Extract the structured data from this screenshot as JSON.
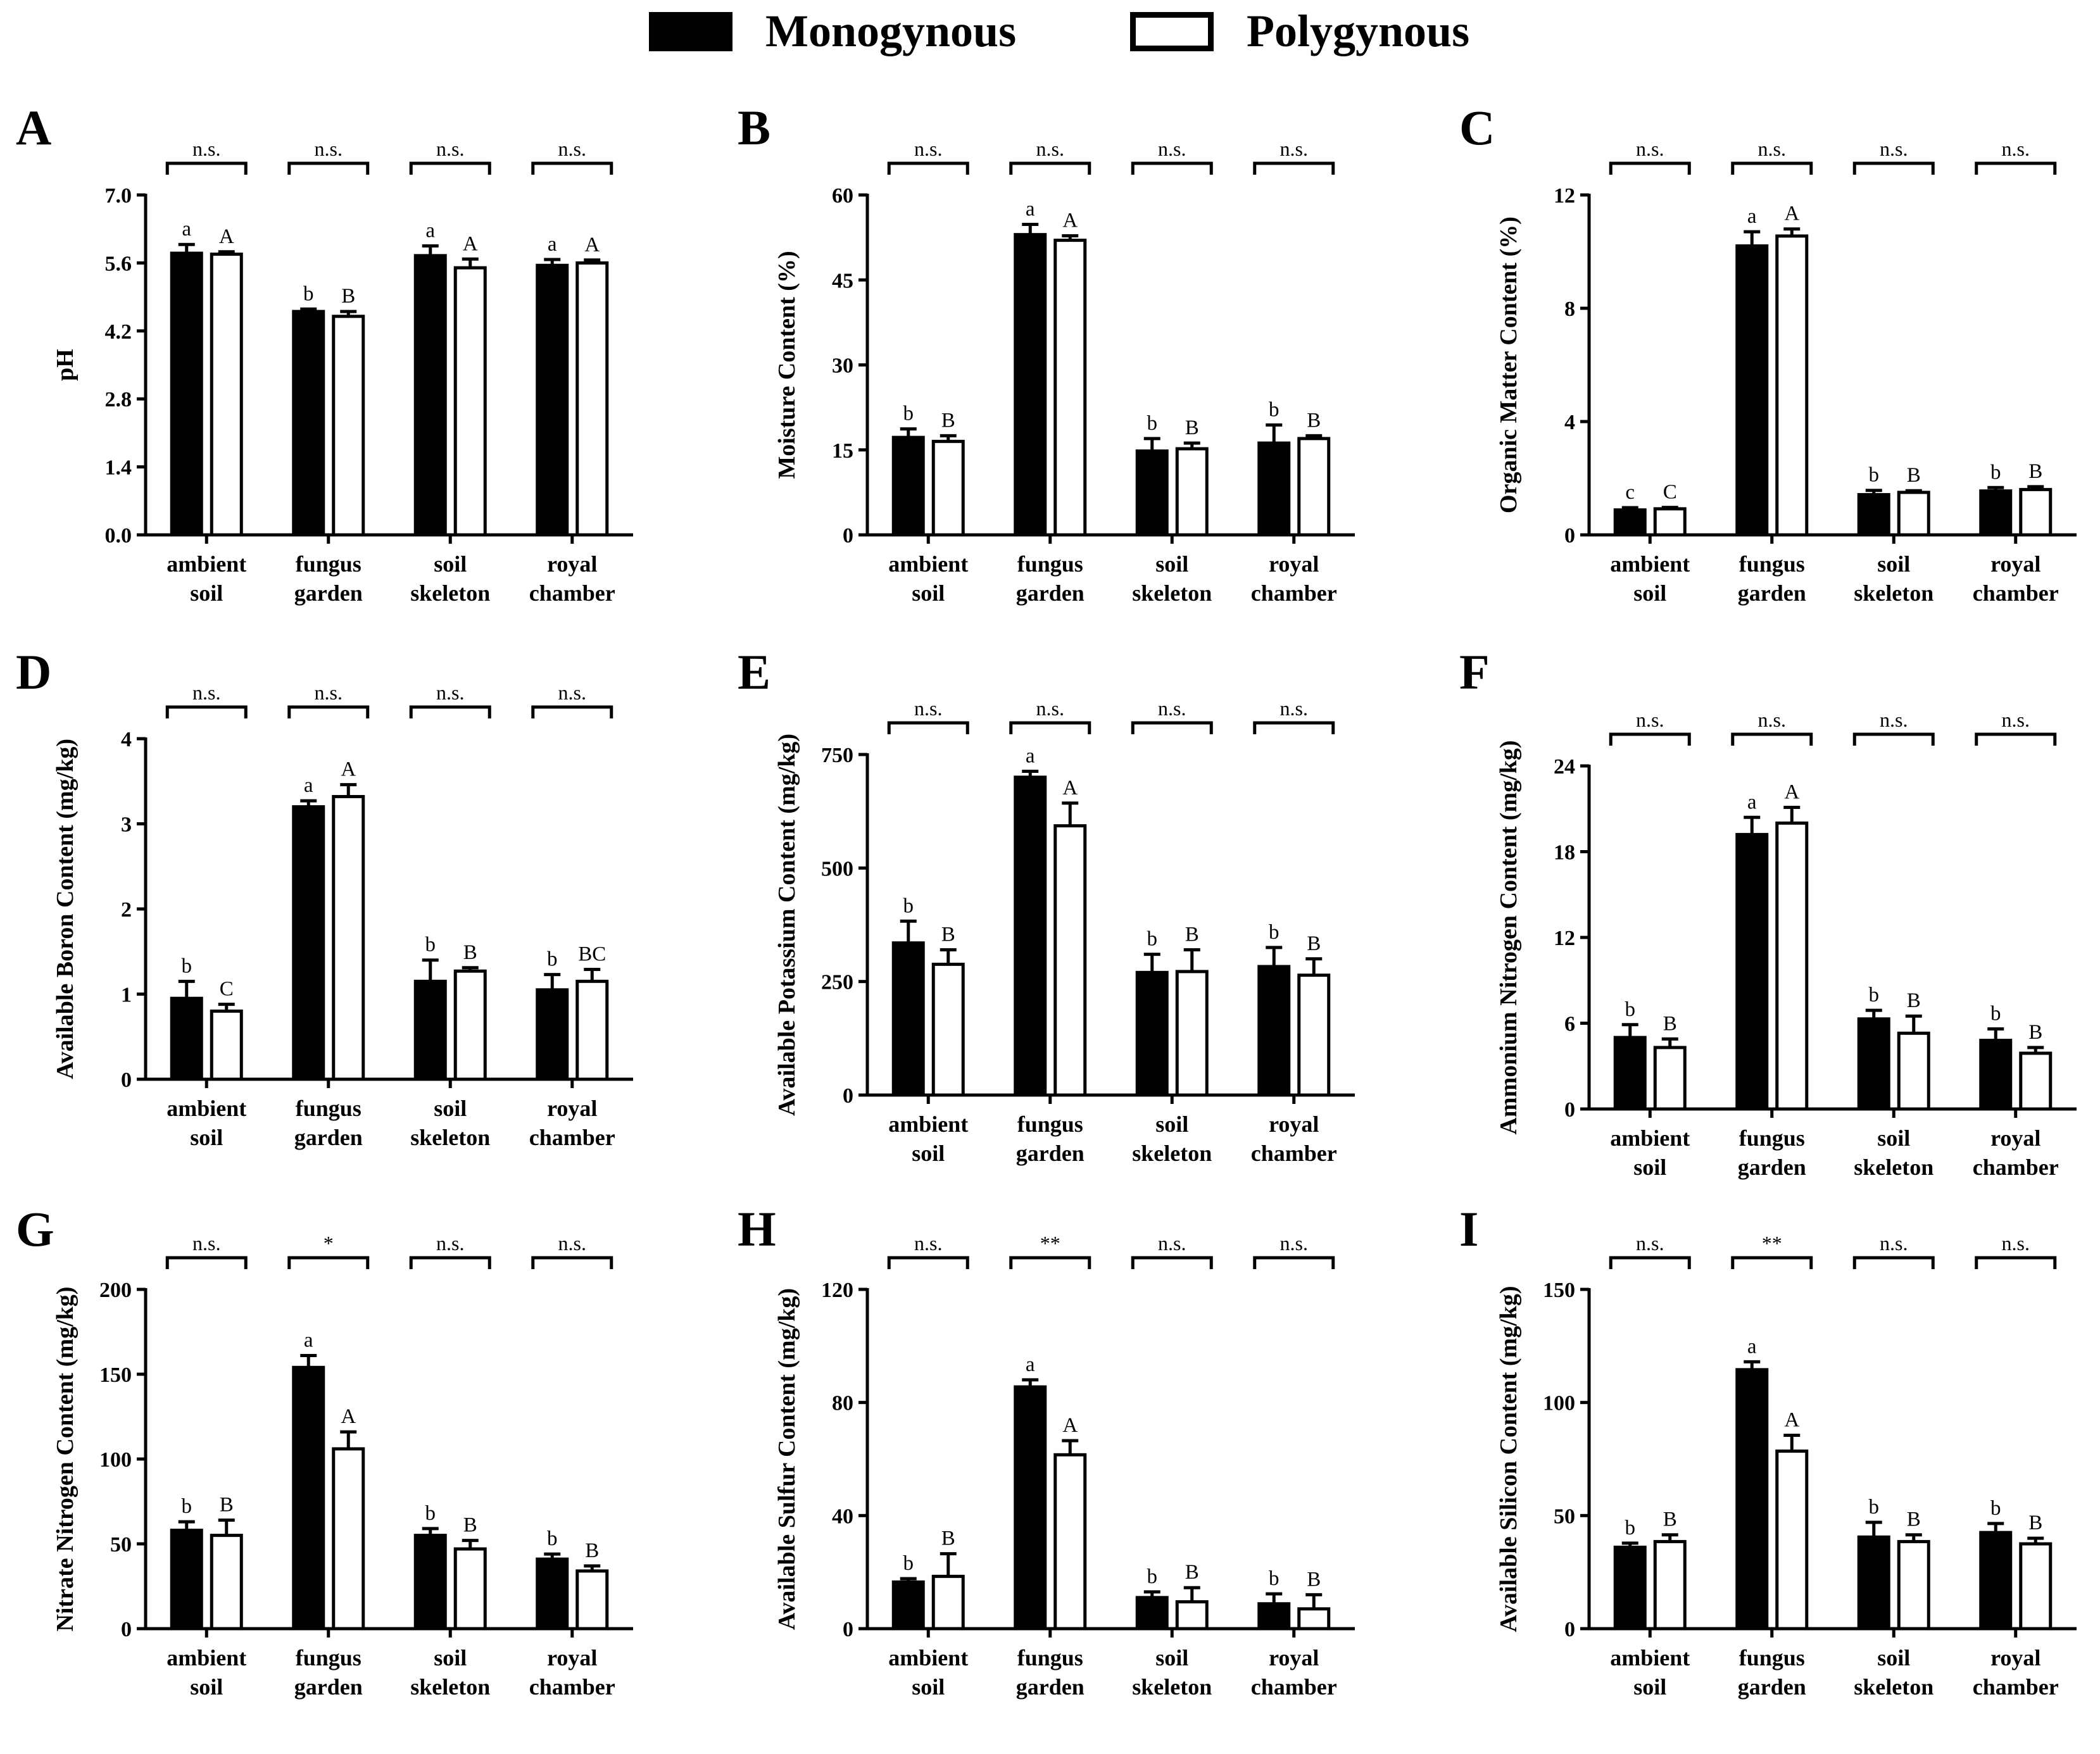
{
  "legend": {
    "series": [
      {
        "name": "Monogynous",
        "color": "#000000"
      },
      {
        "name": "Polygynous",
        "color": "#ffffff"
      }
    ]
  },
  "chart_data": [
    {
      "panel": "A",
      "type": "bar",
      "ylabel": "pH",
      "categories": [
        [
          "ambient",
          "soil"
        ],
        [
          "fungus",
          "garden"
        ],
        [
          "soil",
          "skeleton"
        ],
        [
          "royal",
          "chamber"
        ]
      ],
      "ylim": [
        0,
        7
      ],
      "yticks": [
        "0.0",
        "1.4",
        "2.8",
        "4.2",
        "5.6",
        "7.0"
      ],
      "series": [
        {
          "name": "Monogynous",
          "values": [
            5.8,
            4.6,
            5.75,
            5.55
          ],
          "errors": [
            0.18,
            0.05,
            0.2,
            0.12
          ],
          "letters": [
            "a",
            "b",
            "a",
            "a"
          ]
        },
        {
          "name": "Polygynous",
          "values": [
            5.78,
            4.5,
            5.5,
            5.6
          ],
          "errors": [
            0.05,
            0.1,
            0.18,
            0.06
          ],
          "letters": [
            "A",
            "B",
            "A",
            "A"
          ]
        }
      ],
      "significance": [
        "n.s.",
        "n.s.",
        "n.s.",
        "n.s."
      ]
    },
    {
      "panel": "B",
      "type": "bar",
      "ylabel": "Moisture Content (%)",
      "categories": [
        [
          "ambient",
          "soil"
        ],
        [
          "fungus",
          "garden"
        ],
        [
          "soil",
          "skeleton"
        ],
        [
          "royal",
          "chamber"
        ]
      ],
      "ylim": [
        0,
        60
      ],
      "yticks": [
        "0",
        "15",
        "30",
        "45",
        "60"
      ],
      "series": [
        {
          "name": "Monogynous",
          "values": [
            17.2,
            53,
            14.8,
            16.2
          ],
          "errors": [
            1.5,
            1.8,
            2.2,
            3.2
          ],
          "letters": [
            "b",
            "a",
            "b",
            "b"
          ]
        },
        {
          "name": "Polygynous",
          "values": [
            16.5,
            52,
            15.2,
            17
          ],
          "errors": [
            1.0,
            0.8,
            1.0,
            0.5
          ],
          "letters": [
            "B",
            "A",
            "B",
            "B"
          ]
        }
      ],
      "significance": [
        "n.s.",
        "n.s.",
        "n.s.",
        "n.s."
      ]
    },
    {
      "panel": "C",
      "type": "bar",
      "ylabel": "Organic Matter Content (%)",
      "categories": [
        [
          "ambient",
          "soil"
        ],
        [
          "fungus",
          "garden"
        ],
        [
          "soil",
          "skeleton"
        ],
        [
          "royal",
          "chamber"
        ]
      ],
      "ylim": [
        0,
        12
      ],
      "yticks": [
        "0",
        "4",
        "8",
        "12"
      ],
      "series": [
        {
          "name": "Monogynous",
          "values": [
            0.88,
            10.2,
            1.42,
            1.55
          ],
          "errors": [
            0.08,
            0.5,
            0.15,
            0.12
          ],
          "letters": [
            "c",
            "a",
            "b",
            "b"
          ]
        },
        {
          "name": "Polygynous",
          "values": [
            0.92,
            10.55,
            1.5,
            1.6
          ],
          "errors": [
            0.05,
            0.25,
            0.06,
            0.1
          ],
          "letters": [
            "C",
            "A",
            "B",
            "B"
          ]
        }
      ],
      "significance": [
        "n.s.",
        "n.s.",
        "n.s.",
        "n.s."
      ]
    },
    {
      "panel": "D",
      "type": "bar",
      "ylabel": "Available Boron Content (mg/kg)",
      "categories": [
        [
          "ambient",
          "soil"
        ],
        [
          "fungus",
          "garden"
        ],
        [
          "soil",
          "skeleton"
        ],
        [
          "royal",
          "chamber"
        ]
      ],
      "ylim": [
        0,
        4
      ],
      "yticks": [
        "0",
        "1",
        "2",
        "3",
        "4"
      ],
      "series": [
        {
          "name": "Monogynous",
          "values": [
            0.95,
            3.2,
            1.15,
            1.05
          ],
          "errors": [
            0.2,
            0.07,
            0.25,
            0.18
          ],
          "letters": [
            "b",
            "a",
            "b",
            "b"
          ]
        },
        {
          "name": "Polygynous",
          "values": [
            0.8,
            3.32,
            1.27,
            1.15
          ],
          "errors": [
            0.08,
            0.14,
            0.04,
            0.14
          ],
          "letters": [
            "C",
            "A",
            "B",
            "BC"
          ]
        }
      ],
      "significance": [
        "n.s.",
        "n.s.",
        "n.s.",
        "n.s."
      ]
    },
    {
      "panel": "E",
      "type": "bar",
      "ylabel": "Available Potassium Content (mg/kg)",
      "categories": [
        [
          "ambient",
          "soil"
        ],
        [
          "fungus",
          "garden"
        ],
        [
          "soil",
          "skeleton"
        ],
        [
          "royal",
          "chamber"
        ]
      ],
      "ylim": [
        0,
        750
      ],
      "yticks": [
        "0",
        "250",
        "500",
        "750"
      ],
      "series": [
        {
          "name": "Monogynous",
          "values": [
            335,
            700,
            270,
            283
          ],
          "errors": [
            48,
            13,
            40,
            42
          ],
          "letters": [
            "b",
            "a",
            "b",
            "b"
          ]
        },
        {
          "name": "Polygynous",
          "values": [
            288,
            593,
            272,
            264
          ],
          "errors": [
            32,
            50,
            48,
            36
          ],
          "letters": [
            "B",
            "A",
            "B",
            "B"
          ]
        }
      ],
      "significance": [
        "n.s.",
        "n.s.",
        "n.s.",
        "n.s."
      ]
    },
    {
      "panel": "F",
      "type": "bar",
      "ylabel": "Ammonium Nitrogen Content (mg/kg)",
      "categories": [
        [
          "ambient",
          "soil"
        ],
        [
          "fungus",
          "garden"
        ],
        [
          "soil",
          "skeleton"
        ],
        [
          "royal",
          "chamber"
        ]
      ],
      "ylim": [
        0,
        24
      ],
      "yticks": [
        "0",
        "6",
        "12",
        "18",
        "24"
      ],
      "series": [
        {
          "name": "Monogynous",
          "values": [
            5.0,
            19.2,
            6.3,
            4.8
          ],
          "errors": [
            0.9,
            1.2,
            0.6,
            0.8
          ],
          "letters": [
            "b",
            "a",
            "b",
            "b"
          ]
        },
        {
          "name": "Polygynous",
          "values": [
            4.3,
            20.0,
            5.3,
            3.9
          ],
          "errors": [
            0.6,
            1.1,
            1.2,
            0.4
          ],
          "letters": [
            "B",
            "A",
            "B",
            "B"
          ]
        }
      ],
      "significance": [
        "n.s.",
        "n.s.",
        "n.s.",
        "n.s."
      ]
    },
    {
      "panel": "G",
      "type": "bar",
      "ylabel": "Nitrate Nitrogen Content (mg/kg)",
      "categories": [
        [
          "ambient",
          "soil"
        ],
        [
          "fungus",
          "garden"
        ],
        [
          "soil",
          "skeleton"
        ],
        [
          "royal",
          "chamber"
        ]
      ],
      "ylim": [
        0,
        200
      ],
      "yticks": [
        "0",
        "50",
        "100",
        "150",
        "200"
      ],
      "series": [
        {
          "name": "Monogynous",
          "values": [
            58,
            154,
            55,
            41
          ],
          "errors": [
            5,
            7,
            4,
            3
          ],
          "letters": [
            "b",
            "a",
            "b",
            "b"
          ]
        },
        {
          "name": "Polygynous",
          "values": [
            55,
            106,
            47,
            34
          ],
          "errors": [
            9,
            10,
            5,
            3
          ],
          "letters": [
            "B",
            "A",
            "B",
            "B"
          ]
        }
      ],
      "significance": [
        "n.s.",
        "*",
        "n.s.",
        "n.s."
      ]
    },
    {
      "panel": "H",
      "type": "bar",
      "ylabel": "Available Sulfur Content (mg/kg)",
      "categories": [
        [
          "ambient",
          "soil"
        ],
        [
          "fungus",
          "garden"
        ],
        [
          "soil",
          "skeleton"
        ],
        [
          "royal",
          "chamber"
        ]
      ],
      "ylim": [
        0,
        120
      ],
      "yticks": [
        "0",
        "40",
        "80",
        "120"
      ],
      "series": [
        {
          "name": "Monogynous",
          "values": [
            16.5,
            85.5,
            11,
            8.8
          ],
          "errors": [
            1.2,
            2.5,
            2,
            3.5
          ],
          "letters": [
            "b",
            "a",
            "b",
            "b"
          ]
        },
        {
          "name": "Polygynous",
          "values": [
            18.5,
            61.5,
            9.5,
            7
          ],
          "errors": [
            8,
            5,
            5,
            5
          ],
          "letters": [
            "B",
            "A",
            "B",
            "B"
          ]
        }
      ],
      "significance": [
        "n.s.",
        "**",
        "n.s.",
        "n.s."
      ]
    },
    {
      "panel": "I",
      "type": "bar",
      "ylabel": "Available Silicon Content (mg/kg)",
      "categories": [
        [
          "ambient",
          "soil"
        ],
        [
          "fungus",
          "garden"
        ],
        [
          "soil",
          "skeleton"
        ],
        [
          "royal",
          "chamber"
        ]
      ],
      "ylim": [
        0,
        150
      ],
      "yticks": [
        "0",
        "50",
        "100",
        "150"
      ],
      "series": [
        {
          "name": "Monogynous",
          "values": [
            36,
            114.5,
            40.5,
            42.5
          ],
          "errors": [
            1.8,
            3.5,
            6.5,
            4
          ],
          "letters": [
            "b",
            "a",
            "b",
            "b"
          ]
        },
        {
          "name": "Polygynous",
          "values": [
            38.5,
            78.5,
            38.5,
            37.5
          ],
          "errors": [
            3,
            7,
            3,
            2.5
          ],
          "letters": [
            "B",
            "A",
            "B",
            "B"
          ]
        }
      ],
      "significance": [
        "n.s.",
        "**",
        "n.s.",
        "n.s."
      ]
    }
  ]
}
